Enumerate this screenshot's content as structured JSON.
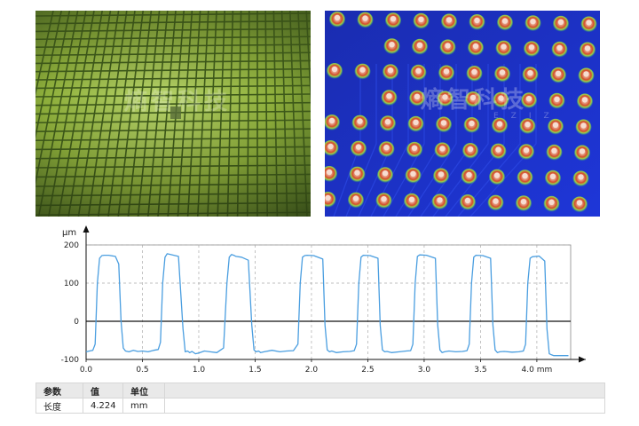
{
  "images": {
    "left": {
      "subject": "wafer-grid-photo",
      "watermark": "熵智科技",
      "color": "#8fb03c"
    },
    "right": {
      "subject": "solder-bump-height-map",
      "watermark": "熵智科技",
      "watermark_sub": "EZIZ",
      "color": "#1b2fd0"
    }
  },
  "chart_data": {
    "type": "line",
    "title": "",
    "xlabel": "mm",
    "ylabel": "μm",
    "xlim": [
      0,
      4.3
    ],
    "ylim": [
      -100,
      200
    ],
    "x_ticks": [
      0.0,
      0.5,
      1.0,
      1.5,
      2.0,
      2.5,
      3.0,
      3.5,
      4.0
    ],
    "x_tick_labels": [
      "0.0",
      "0.5",
      "1.0",
      "1.5",
      "2.0",
      "2.5",
      "3.0",
      "3.5",
      "4.0 mm"
    ],
    "y_ticks": [
      -100,
      0,
      100,
      200
    ],
    "y_tick_labels": [
      "-100",
      "0",
      "100",
      "200"
    ],
    "grid": true,
    "series": [
      {
        "color": "#4a9ee0",
        "x": [
          0.0,
          0.03,
          0.06,
          0.08,
          0.1,
          0.12,
          0.14,
          0.16,
          0.2,
          0.26,
          0.29,
          0.31,
          0.33,
          0.35,
          0.38,
          0.42,
          0.46,
          0.5,
          0.55,
          0.6,
          0.64,
          0.66,
          0.68,
          0.7,
          0.72,
          0.75,
          0.82,
          0.86,
          0.88,
          0.9,
          0.92,
          0.94,
          0.97,
          1.0,
          1.05,
          1.1,
          1.16,
          1.19,
          1.22,
          1.25,
          1.27,
          1.29,
          1.31,
          1.33,
          1.38,
          1.44,
          1.47,
          1.49,
          1.51,
          1.53,
          1.55,
          1.58,
          1.65,
          1.72,
          1.78,
          1.84,
          1.88,
          1.9,
          1.92,
          1.94,
          1.96,
          2.02,
          2.1,
          2.12,
          2.14,
          2.16,
          2.18,
          2.22,
          2.28,
          2.34,
          2.38,
          2.4,
          2.42,
          2.44,
          2.46,
          2.52,
          2.59,
          2.61,
          2.63,
          2.65,
          2.67,
          2.71,
          2.78,
          2.84,
          2.88,
          2.9,
          2.92,
          2.94,
          2.96,
          3.02,
          3.1,
          3.12,
          3.14,
          3.16,
          3.18,
          3.22,
          3.28,
          3.34,
          3.38,
          3.4,
          3.42,
          3.44,
          3.46,
          3.52,
          3.59,
          3.61,
          3.63,
          3.65,
          3.67,
          3.71,
          3.78,
          3.84,
          3.88,
          3.9,
          3.92,
          3.94,
          3.96,
          4.02,
          4.07,
          4.09,
          4.11,
          4.13,
          4.15,
          4.2,
          4.28
        ],
        "y": [
          -80,
          -78,
          -76,
          -60,
          100,
          165,
          172,
          173,
          173,
          170,
          150,
          0,
          -70,
          -78,
          -80,
          -76,
          -79,
          -78,
          -80,
          -76,
          -74,
          -55,
          100,
          168,
          177,
          175,
          170,
          -20,
          -80,
          -78,
          -82,
          -79,
          -85,
          -83,
          -78,
          -80,
          -82,
          -76,
          -70,
          100,
          168,
          175,
          173,
          170,
          168,
          160,
          -10,
          -75,
          -80,
          -78,
          -82,
          -80,
          -76,
          -80,
          -78,
          -77,
          -60,
          100,
          168,
          172,
          173,
          172,
          163,
          -10,
          -75,
          -80,
          -78,
          -82,
          -80,
          -79,
          -77,
          -60,
          100,
          168,
          173,
          172,
          165,
          -10,
          -75,
          -80,
          -79,
          -82,
          -80,
          -78,
          -77,
          -60,
          100,
          170,
          174,
          173,
          165,
          -10,
          -75,
          -82,
          -80,
          -78,
          -80,
          -79,
          -77,
          -60,
          100,
          168,
          173,
          172,
          165,
          -10,
          -75,
          -82,
          -80,
          -79,
          -81,
          -80,
          -78,
          -60,
          100,
          165,
          169,
          171,
          158,
          -20,
          -85,
          -88,
          -90,
          -90,
          -90
        ]
      }
    ]
  },
  "params": {
    "header": {
      "param": "参数",
      "value": "值",
      "unit": "单位"
    },
    "row": {
      "param": "长度",
      "value": "4.224",
      "unit": "mm"
    }
  }
}
